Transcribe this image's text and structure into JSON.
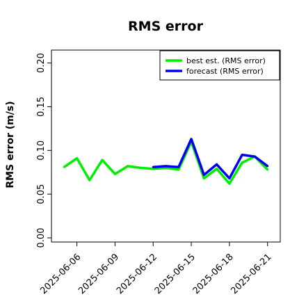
{
  "chart_data": {
    "type": "line",
    "title": "RMS error",
    "xlabel": "",
    "ylabel": "RMS error (m/s)",
    "ylim": [
      0,
      0.21
    ],
    "xlim": [
      "2025-06-04",
      "2025-06-22"
    ],
    "yticks": [
      "0.00",
      "0.05",
      "0.10",
      "0.15",
      "0.20"
    ],
    "xticks": [
      "2025-06-06",
      "2025-06-09",
      "2025-06-12",
      "2025-06-15",
      "2025-06-18",
      "2025-06-21"
    ],
    "highlighted_xtick": "2025-06-12",
    "highlight_color": "#228B22",
    "grid": false,
    "legend_position": "top-right",
    "series": [
      {
        "name": "best est. (RMS error)",
        "color": "#00ee00",
        "x": [
          "2025-06-05",
          "2025-06-06",
          "2025-06-07",
          "2025-06-08",
          "2025-06-09",
          "2025-06-10",
          "2025-06-11",
          "2025-06-12",
          "2025-06-13",
          "2025-06-14",
          "2025-06-15",
          "2025-06-16",
          "2025-06-17",
          "2025-06-18",
          "2025-06-19",
          "2025-06-20",
          "2025-06-21"
        ],
        "values": [
          0.081,
          0.091,
          0.066,
          0.089,
          0.073,
          0.082,
          0.08,
          0.079,
          0.08,
          0.078,
          0.11,
          0.068,
          0.079,
          0.062,
          0.086,
          0.093,
          0.078
        ]
      },
      {
        "name": "forecast (RMS error)",
        "color": "#0000ee",
        "x": [
          "2025-06-12",
          "2025-06-13",
          "2025-06-14",
          "2025-06-15",
          "2025-06-16",
          "2025-06-17",
          "2025-06-18",
          "2025-06-19",
          "2025-06-20",
          "2025-06-21"
        ],
        "values": [
          0.081,
          0.082,
          0.081,
          0.113,
          0.072,
          0.084,
          0.068,
          0.095,
          0.093,
          0.082
        ]
      }
    ]
  }
}
